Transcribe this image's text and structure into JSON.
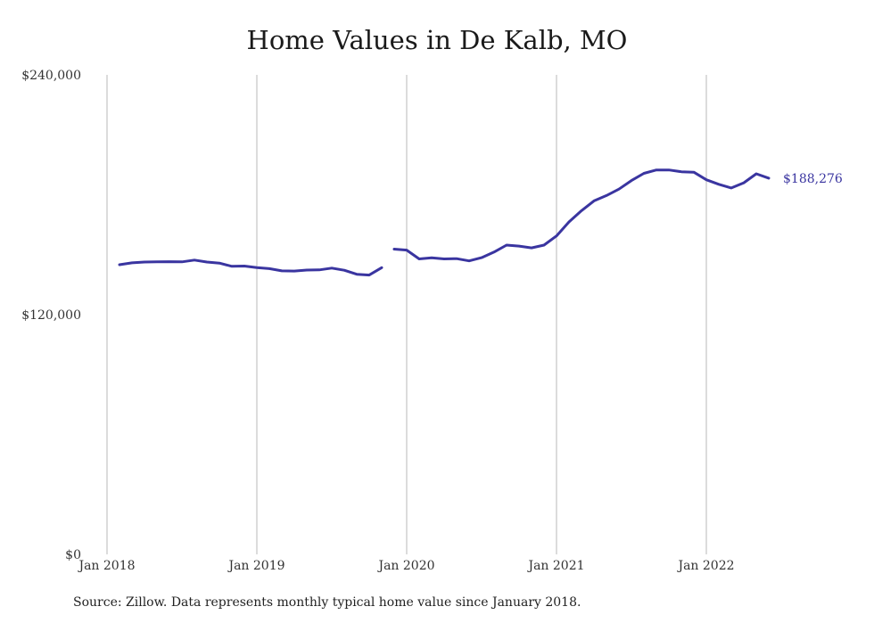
{
  "chart_data": {
    "type": "line",
    "title": "Home Values in De Kalb, MO",
    "source_note": "Source: Zillow. Data represents monthly typical home value since January 2018.",
    "line_color": "#3a35a0",
    "gridline_color": "#b8b8b8",
    "ylim": [
      0,
      240000
    ],
    "yticks": [
      {
        "value": 240000,
        "label": "$240,000"
      },
      {
        "value": 120000,
        "label": "$120,000"
      },
      {
        "value": 0,
        "label": "$0"
      }
    ],
    "xticks": [
      {
        "date": "2018-01",
        "label": "Jan 2018"
      },
      {
        "date": "2019-01",
        "label": "Jan 2019"
      },
      {
        "date": "2020-01",
        "label": "Jan 2020"
      },
      {
        "date": "2021-01",
        "label": "Jan 2021"
      },
      {
        "date": "2022-01",
        "label": "Jan 2022"
      }
    ],
    "x_range": [
      "2018-01",
      "2022-07"
    ],
    "end_label": "$188,276",
    "series": [
      {
        "segments": [
          [
            [
              "2018-02",
              145000
            ],
            [
              "2018-03",
              145900
            ],
            [
              "2018-04",
              146300
            ],
            [
              "2018-05",
              146400
            ],
            [
              "2018-06",
              146500
            ],
            [
              "2018-07",
              146400
            ],
            [
              "2018-08",
              147300
            ],
            [
              "2018-09",
              146300
            ],
            [
              "2018-10",
              145800
            ],
            [
              "2018-11",
              144200
            ],
            [
              "2018-12",
              144300
            ],
            [
              "2019-01",
              143500
            ],
            [
              "2019-02",
              143000
            ],
            [
              "2019-03",
              141900
            ],
            [
              "2019-04",
              141800
            ],
            [
              "2019-05",
              142300
            ],
            [
              "2019-06",
              142400
            ],
            [
              "2019-07",
              143300
            ],
            [
              "2019-08",
              142200
            ],
            [
              "2019-09",
              140200
            ],
            [
              "2019-10",
              139800
            ],
            [
              "2019-11",
              143500
            ]
          ],
          [
            [
              "2019-12",
              152800
            ],
            [
              "2020-01",
              152300
            ],
            [
              "2020-02",
              147900
            ],
            [
              "2020-03",
              148400
            ],
            [
              "2020-04",
              147900
            ],
            [
              "2020-05",
              148000
            ],
            [
              "2020-06",
              146900
            ],
            [
              "2020-07",
              148500
            ],
            [
              "2020-08",
              151300
            ],
            [
              "2020-09",
              154800
            ],
            [
              "2020-10",
              154300
            ],
            [
              "2020-11",
              153400
            ],
            [
              "2020-12",
              154800
            ],
            [
              "2021-01",
              159400
            ],
            [
              "2021-02",
              166400
            ],
            [
              "2021-03",
              172000
            ],
            [
              "2021-04",
              176900
            ],
            [
              "2021-05",
              179600
            ],
            [
              "2021-06",
              182800
            ],
            [
              "2021-07",
              187100
            ],
            [
              "2021-08",
              190700
            ],
            [
              "2021-09",
              192400
            ],
            [
              "2021-10",
              192400
            ],
            [
              "2021-11",
              191500
            ],
            [
              "2021-12",
              191300
            ],
            [
              "2022-01",
              187500
            ],
            [
              "2022-02",
              185200
            ],
            [
              "2022-03",
              183400
            ],
            [
              "2022-04",
              186000
            ],
            [
              "2022-05",
              190500
            ],
            [
              "2022-06",
              188276
            ]
          ]
        ]
      }
    ]
  }
}
